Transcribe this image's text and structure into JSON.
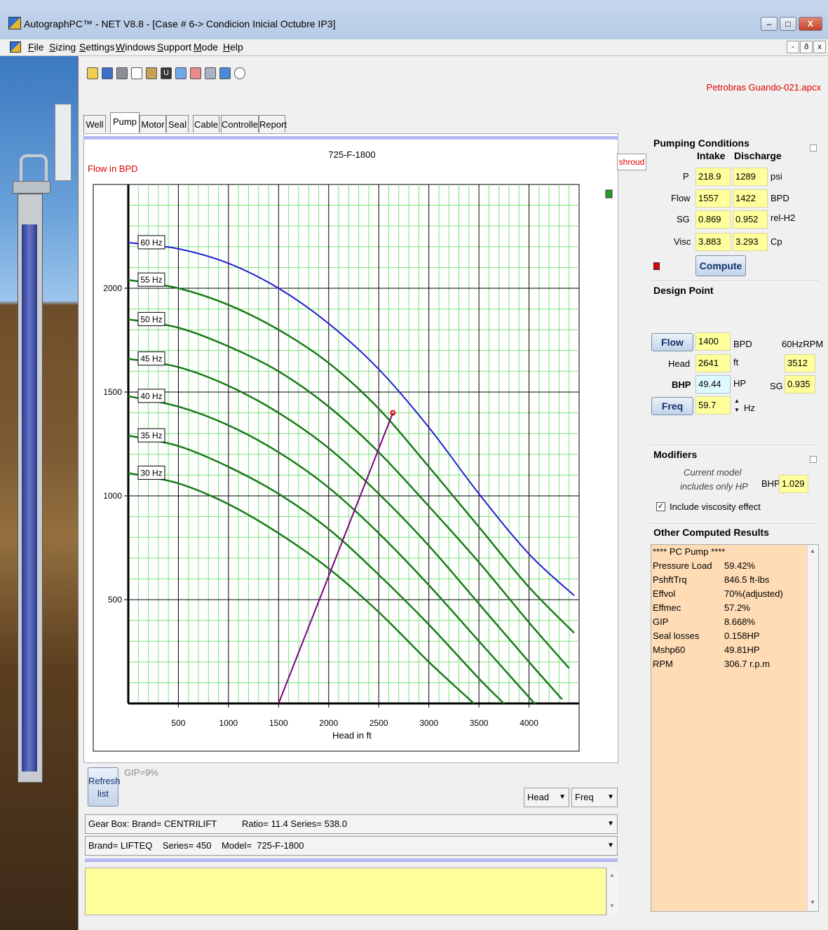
{
  "window": {
    "title": "AutographPC™ - NET V8.8 - [Case # 6-> Condicion Inicial Octubre IP3]",
    "minimize": "–",
    "maximize": "□",
    "close": "X"
  },
  "menu": {
    "items": [
      "File",
      "Sizing",
      "Settings",
      "Windows",
      "Support",
      "Mode",
      "Help"
    ],
    "mdi_min": "-",
    "mdi_restore": "ð",
    "mdi_close": "x"
  },
  "toolbar_icons": [
    "open-folder-icon",
    "save-icon",
    "print-icon",
    "document-icon",
    "tools-icon",
    "u-icon",
    "undo-icon",
    "graph-icon",
    "wrench-icon",
    "info-icon",
    "help-icon"
  ],
  "file_label": "Petrobras Guando-021.apcx",
  "tabs": [
    "Well",
    "Pump",
    "Motor",
    "Seal",
    "Cable",
    "Controller",
    "Report"
  ],
  "active_tab": "Pump",
  "shroud_label": "shroud",
  "chart_data": {
    "type": "line",
    "title": "725-F-1800",
    "xlabel": "Head in ft",
    "ylabel": "Flow in BPD",
    "xlim": [
      0,
      4500
    ],
    "ylim": [
      0,
      2500
    ],
    "xticks": [
      500,
      1000,
      1500,
      2000,
      2500,
      3000,
      3500,
      4000
    ],
    "yticks": [
      500,
      1000,
      1500,
      2000
    ],
    "grid": true,
    "series": [
      {
        "name": "60 Hz",
        "color": "#1f1fd0",
        "x": [
          0,
          500,
          1000,
          1500,
          2000,
          2500,
          3000,
          3500,
          4000,
          4450
        ],
        "y": [
          2220,
          2190,
          2120,
          2000,
          1830,
          1610,
          1330,
          1010,
          720,
          520
        ]
      },
      {
        "name": "55 Hz",
        "color": "#1a7a1a",
        "x": [
          0,
          500,
          1000,
          1500,
          2000,
          2500,
          3000,
          3500,
          4000,
          4450
        ],
        "y": [
          2040,
          2000,
          1920,
          1800,
          1640,
          1420,
          1140,
          850,
          560,
          340
        ]
      },
      {
        "name": "50 Hz",
        "color": "#1a7a1a",
        "x": [
          0,
          500,
          1000,
          1500,
          2000,
          2500,
          3000,
          3500,
          4000,
          4400
        ],
        "y": [
          1850,
          1810,
          1720,
          1600,
          1430,
          1210,
          950,
          680,
          390,
          170
        ]
      },
      {
        "name": "45 Hz",
        "color": "#1a7a1a",
        "x": [
          0,
          500,
          1000,
          1500,
          2000,
          2500,
          3000,
          3500,
          4000,
          4330
        ],
        "y": [
          1660,
          1620,
          1530,
          1400,
          1230,
          1010,
          760,
          480,
          200,
          20
        ]
      },
      {
        "name": "40 Hz",
        "color": "#1a7a1a",
        "x": [
          0,
          500,
          1000,
          1500,
          2000,
          2500,
          3000,
          3500,
          4000,
          4050
        ],
        "y": [
          1480,
          1430,
          1340,
          1210,
          1040,
          820,
          570,
          300,
          30,
          0
        ]
      },
      {
        "name": "35 Hz",
        "color": "#1a7a1a",
        "x": [
          0,
          500,
          1000,
          1500,
          2000,
          2500,
          3000,
          3500,
          3750
        ],
        "y": [
          1290,
          1240,
          1140,
          1010,
          840,
          620,
          380,
          120,
          0
        ]
      },
      {
        "name": "30 Hz",
        "color": "#1a7a1a",
        "x": [
          0,
          500,
          1000,
          1500,
          2000,
          2500,
          3000,
          3450
        ],
        "y": [
          1110,
          1060,
          960,
          820,
          650,
          440,
          200,
          0
        ]
      }
    ],
    "operating_line": {
      "color": "#800080",
      "x": [
        1500,
        2641
      ],
      "y": [
        0,
        1400
      ]
    },
    "design_point": {
      "x": 2641,
      "y": 1400,
      "color": "#e00000"
    }
  },
  "pumping_conditions": {
    "title": "Pumping Conditions",
    "col_intake": "Intake",
    "col_discharge": "Discharge",
    "rows": [
      {
        "label": "P",
        "intake": "218.9",
        "discharge": "1289",
        "unit": "psi"
      },
      {
        "label": "Flow",
        "intake": "1557",
        "discharge": "1422",
        "unit": "BPD"
      },
      {
        "label": "SG",
        "intake": "0.869",
        "discharge": "0.952",
        "unit": "rel-H2"
      },
      {
        "label": "Visc",
        "intake": "3.883",
        "discharge": "3.293",
        "unit": "Cp"
      }
    ],
    "compute_label": "Compute"
  },
  "design_point": {
    "title": "Design Point",
    "flow_label": "Flow",
    "flow_value": "1400",
    "flow_unit": "BPD",
    "rpm_label": "60HzRPM",
    "rpm_value": "3512",
    "head_label": "Head",
    "head_value": "2641",
    "head_unit": "ft",
    "bhp_label": "BHP",
    "bhp_value": "49.44",
    "bhp_unit": "HP",
    "sg_label": "SG",
    "sg_value": "0.935",
    "freq_label": "Freq",
    "freq_value": "59.7",
    "freq_unit": "Hz"
  },
  "modifiers": {
    "title": "Modifiers",
    "note_line1": "Current model",
    "note_line2": "includes only HP",
    "bhp_label": "BHP",
    "bhp_value": "1.029",
    "viscosity_label": "Include viscosity effect",
    "viscosity_checked": true
  },
  "other_results": {
    "title": "Other Computed Results",
    "header": "**** PC Pump ****",
    "rows": [
      {
        "label": "Pressure Load",
        "value": "59.42%"
      },
      {
        "label": "PshftTrq",
        "value": "846.5 ft-lbs"
      },
      {
        "label": "Effvol",
        "value": "70%(adjusted)"
      },
      {
        "label": "Effmec",
        "value": "57.2%"
      },
      {
        "label": "GIP",
        "value": "8.668%"
      },
      {
        "label": "Seal losses",
        "value": "0.158HP"
      },
      {
        "label": "Mshp60",
        "value": "49.81HP"
      },
      {
        "label": "RPM",
        "value": "306.7 r.p.m"
      }
    ]
  },
  "bottom": {
    "refresh_line1": "Refresh",
    "refresh_line2": "list",
    "gip_label": "GIP=9%",
    "head_select": "Head",
    "freq_select": "Freq",
    "gearbox": "Gear Box: Brand= CENTRILIFT          Ratio= 11.4 Series= 538.0",
    "pump_model": "Brand= LIFTEQ    Series= 450    Model=  725-F-1800"
  }
}
